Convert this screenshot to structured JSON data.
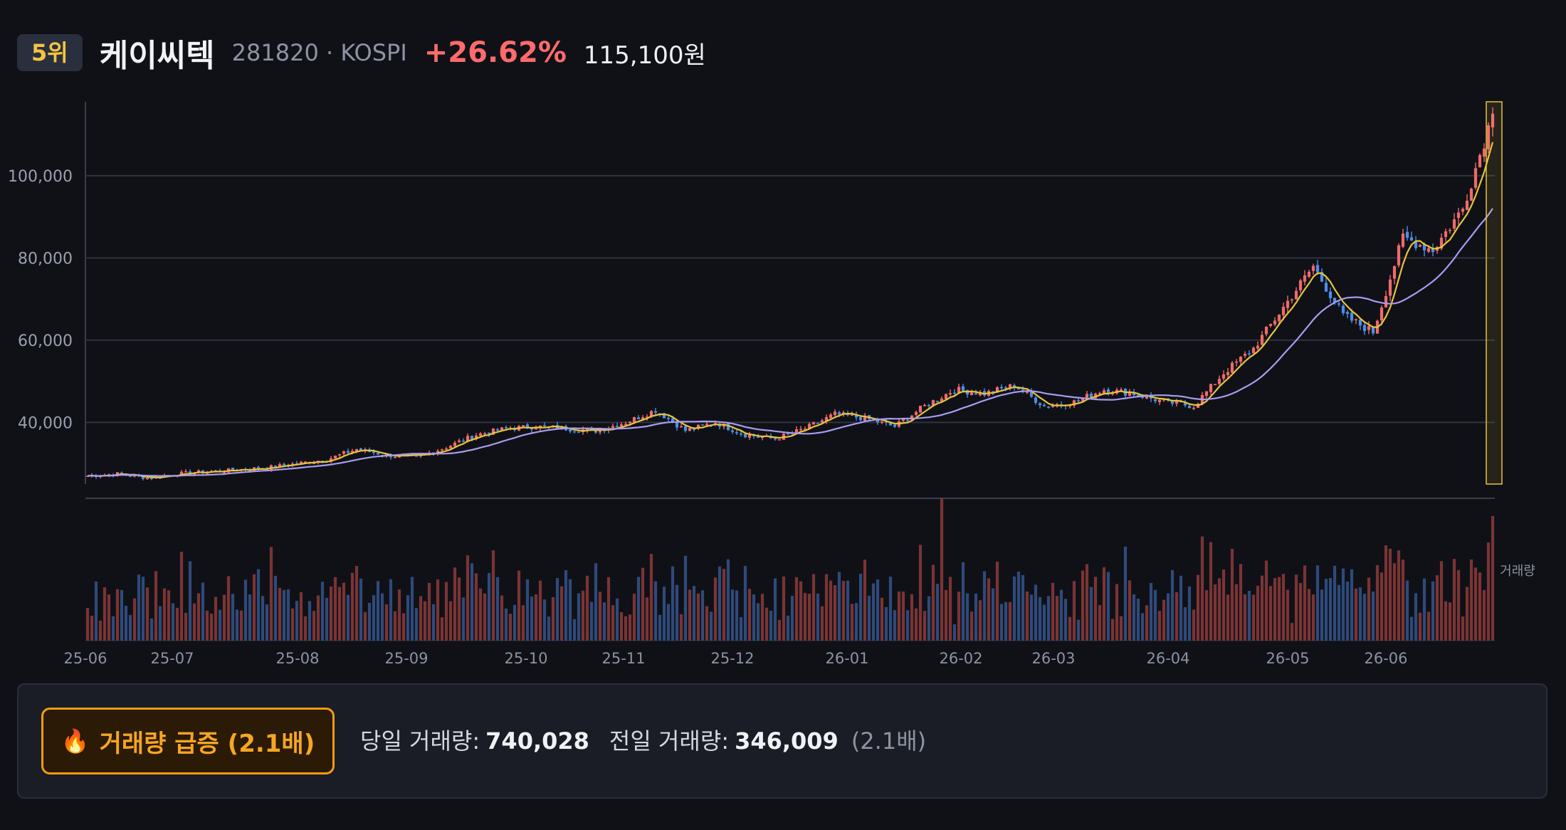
{
  "header": {
    "rank": "5위",
    "name": "케이씨텍",
    "meta": "281820 · KOSPI",
    "change": "+26.62%",
    "price": "115,100원"
  },
  "chart_data": {
    "type": "candlestick",
    "y_ticks": [
      "100,000",
      "80,000",
      "60,000",
      "40,000"
    ],
    "y_tick_values": [
      100000,
      80000,
      60000,
      40000
    ],
    "ylim": [
      25000,
      118000
    ],
    "x_ticks": [
      "25-06",
      "25-07",
      "25-08",
      "25-09",
      "25-10",
      "25-11",
      "25-12",
      "26-01",
      "26-02",
      "26-03",
      "26-04",
      "26-05",
      "26-06"
    ],
    "volume_label": "거래량",
    "last_close": 115100,
    "price_series_close": [
      27000,
      27500,
      26500,
      27500,
      28000,
      28500,
      29000,
      30000,
      31000,
      33500,
      32000,
      31500,
      34000,
      37000,
      38500,
      39000,
      38500,
      38000,
      40000,
      43000,
      38000,
      40000,
      37000,
      36000,
      38500,
      42000,
      41000,
      39000,
      44000,
      48000,
      47000,
      49000,
      44000,
      45000,
      48000,
      47000,
      45000,
      44000,
      52000,
      58000,
      68000,
      78000,
      66000,
      62000,
      85000,
      82000,
      92000,
      115100
    ],
    "ma_short_label": "",
    "ma_long_label": "",
    "colors": {
      "up": "#f06a6a",
      "down": "#4a8fe8",
      "ma_short": "#e8c43a",
      "ma_long": "#a99cf0",
      "highlight": "#e8c43a"
    }
  },
  "panel": {
    "surge_label": "거래량 급증 (2.1배)",
    "today_label": "당일 거래량:",
    "today_value": "740,028",
    "prev_label": "전일 거래량:",
    "prev_value": "346,009",
    "ratio": "(2.1배)"
  },
  "icons": {
    "fire": "fire-icon"
  }
}
